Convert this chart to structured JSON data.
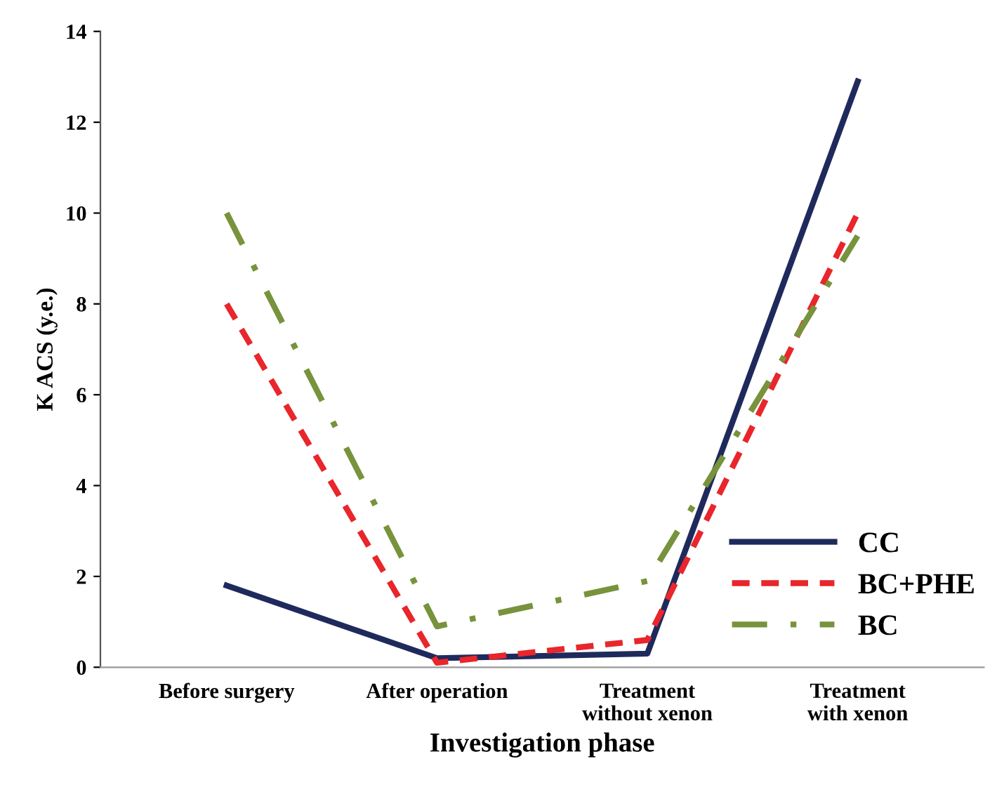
{
  "chart_data": {
    "type": "line",
    "xlabel": "Investigation phase",
    "ylabel": "K ACS (y.e.)",
    "categories": [
      "Before surgery",
      "After operation",
      "Treatment\nwithout xenon",
      "Treatment\nwith xenon"
    ],
    "series": [
      {
        "name": "CC",
        "color": "#1f2a5c",
        "line_style": "solid",
        "values": [
          1.8,
          0.2,
          0.3,
          12.9
        ]
      },
      {
        "name": "BC+PHE",
        "color": "#e8262b",
        "line_style": "dashed",
        "values": [
          8.0,
          0.1,
          0.6,
          10.0
        ]
      },
      {
        "name": "BC",
        "color": "#77933c",
        "line_style": "dashdot",
        "values": [
          10.0,
          0.9,
          1.9,
          9.5
        ]
      }
    ],
    "ylim": [
      0,
      14
    ],
    "yticks": [
      0,
      2,
      4,
      6,
      8,
      10,
      12,
      14
    ],
    "grid": false,
    "legend": "bottom right",
    "marker": "none"
  }
}
